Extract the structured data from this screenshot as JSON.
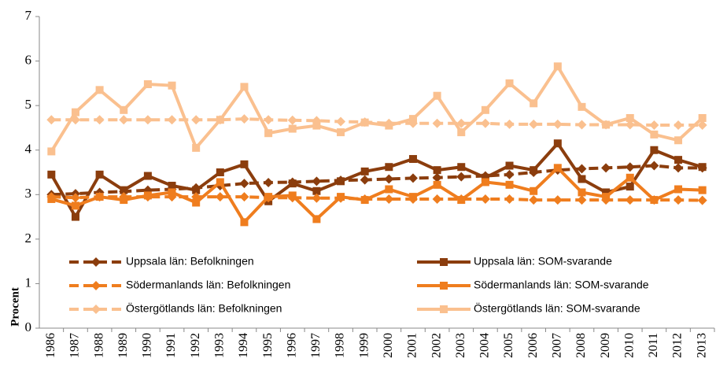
{
  "chart_data": {
    "type": "line",
    "y_label": "Procent",
    "categories": [
      "1986",
      "1987",
      "1988",
      "1989",
      "1990",
      "1991",
      "1992",
      "1993",
      "1994",
      "1995",
      "1996",
      "1997",
      "1998",
      "1999",
      "2000",
      "2001",
      "2002",
      "2003",
      "2004",
      "2005",
      "2006",
      "2007",
      "2008",
      "2009",
      "2010",
      "2011",
      "2012",
      "2013"
    ],
    "ylim": [
      0,
      7
    ],
    "yticks": [
      0,
      1,
      2,
      3,
      4,
      5,
      6,
      7
    ],
    "grid": false,
    "series": [
      {
        "name": "Uppsala län: Befolkningen",
        "color": "#8b3d0d",
        "style": "dashed",
        "marker": "diamond",
        "values": [
          3.0,
          3.02,
          3.05,
          3.07,
          3.1,
          3.12,
          3.15,
          3.2,
          3.25,
          3.27,
          3.28,
          3.3,
          3.32,
          3.33,
          3.35,
          3.37,
          3.38,
          3.4,
          3.42,
          3.45,
          3.5,
          3.55,
          3.58,
          3.6,
          3.62,
          3.65,
          3.6,
          3.6
        ]
      },
      {
        "name": "Uppsala län: SOM-svarande",
        "color": "#8b3d0d",
        "style": "solid",
        "marker": "square",
        "values": [
          3.45,
          2.5,
          3.45,
          3.1,
          3.42,
          3.2,
          3.1,
          3.5,
          3.68,
          2.85,
          3.25,
          3.08,
          3.3,
          3.52,
          3.62,
          3.8,
          3.55,
          3.62,
          3.38,
          3.65,
          3.55,
          4.15,
          3.35,
          3.05,
          3.18,
          4.0,
          3.78,
          3.62
        ]
      },
      {
        "name": "Södermanlands län: Befolkningen",
        "color": "#ef7d1e",
        "style": "dashed",
        "marker": "diamond",
        "values": [
          2.95,
          2.93,
          2.95,
          2.95,
          2.95,
          2.95,
          2.95,
          2.95,
          2.95,
          2.93,
          2.93,
          2.92,
          2.92,
          2.9,
          2.9,
          2.9,
          2.9,
          2.9,
          2.9,
          2.9,
          2.88,
          2.88,
          2.88,
          2.88,
          2.88,
          2.88,
          2.88,
          2.87
        ]
      },
      {
        "name": "Södermanlands län: SOM-svarande",
        "color": "#ef7d1e",
        "style": "solid",
        "marker": "square",
        "values": [
          2.9,
          2.75,
          2.95,
          2.88,
          2.98,
          3.05,
          2.82,
          3.28,
          2.38,
          2.95,
          2.98,
          2.45,
          2.95,
          2.88,
          3.12,
          2.95,
          3.22,
          2.88,
          3.28,
          3.22,
          3.08,
          3.6,
          3.05,
          2.95,
          3.38,
          2.88,
          3.12,
          3.1
        ]
      },
      {
        "name": "Östergötlands län: Befolkningen",
        "color": "#fac08f",
        "style": "dashed",
        "marker": "diamond",
        "values": [
          4.68,
          4.68,
          4.68,
          4.68,
          4.68,
          4.68,
          4.68,
          4.68,
          4.7,
          4.68,
          4.67,
          4.66,
          4.64,
          4.63,
          4.6,
          4.6,
          4.6,
          4.6,
          4.6,
          4.58,
          4.58,
          4.58,
          4.57,
          4.57,
          4.57,
          4.56,
          4.56,
          4.56
        ]
      },
      {
        "name": "Östergötlands län: SOM-svarande",
        "color": "#fac08f",
        "style": "solid",
        "marker": "square",
        "values": [
          3.97,
          4.85,
          5.35,
          4.9,
          5.48,
          5.45,
          4.05,
          4.68,
          5.42,
          4.38,
          4.48,
          4.55,
          4.4,
          4.62,
          4.55,
          4.7,
          5.22,
          4.4,
          4.9,
          5.5,
          5.05,
          5.88,
          4.97,
          4.57,
          4.72,
          4.35,
          4.22,
          4.72
        ]
      }
    ]
  }
}
